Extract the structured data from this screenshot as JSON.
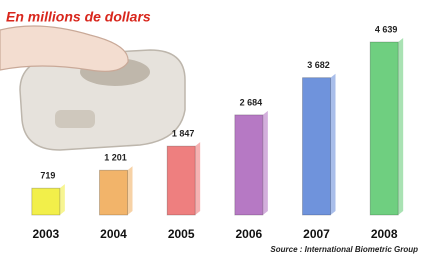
{
  "chart_data": {
    "type": "bar",
    "title": "En millions de dollars",
    "source": "Source : International Biometric Group",
    "categories": [
      "2003",
      "2004",
      "2005",
      "2006",
      "2007",
      "2008"
    ],
    "values": [
      719,
      1201,
      1847,
      2684,
      3682,
      4639
    ],
    "value_labels": [
      "719",
      "1 201",
      "1 847",
      "2 684",
      "3 682",
      "4 639"
    ],
    "colors": [
      "#f2ef4a",
      "#f2b46a",
      "#ee7f7f",
      "#b679c4",
      "#6f93dc",
      "#6fcf80"
    ]
  }
}
